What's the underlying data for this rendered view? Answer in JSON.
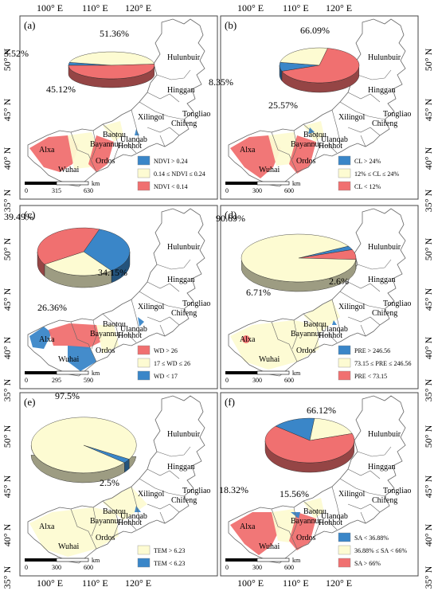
{
  "axes": {
    "top_lon": [
      "100° E",
      "110° E",
      "120° E"
    ],
    "bottom_lon": [
      "100° E",
      "110° E",
      "120° E"
    ],
    "left_lat": [
      "50° N",
      "45° N",
      "40° N",
      "35° N"
    ],
    "right_lat": [
      "50° N",
      "45° N",
      "40° N",
      "35° N"
    ]
  },
  "cities": [
    "Hulunbuir",
    "Hinggan",
    "Tongliao",
    "Chifeng",
    "Xilingol",
    "Ulanqab",
    "Baotou",
    "Hohhot",
    "Bayannur",
    "Alxa",
    "Ordos",
    "Wuhai"
  ],
  "colors": {
    "red": "#f07070",
    "yellow": "#fdfbd2",
    "blue": "#3a86c8",
    "border": "#666666"
  },
  "panels": [
    {
      "label": "(a)",
      "chart_data": {
        "type": "pie",
        "values": [
          3.52,
          45.12,
          51.36
        ],
        "labels": [
          "3.52%",
          "45.12%",
          "51.36%"
        ],
        "colors": [
          "#3a86c8",
          "#fdfbd2",
          "#f07070"
        ]
      },
      "legend": [
        "NDVI > 0.24",
        "0.14 ≤ NDVI ≤ 0.24",
        "NDVI < 0.14"
      ],
      "legend_colors": [
        "#3a86c8",
        "#fdfbd2",
        "#f07070"
      ],
      "scalebar": {
        "ticks": [
          "0",
          "315",
          "630"
        ],
        "unit": "km"
      }
    },
    {
      "label": "(b)",
      "chart_data": {
        "type": "pie",
        "values": [
          8.35,
          25.57,
          66.09
        ],
        "labels": [
          "8.35%",
          "25.57%",
          "66.09%"
        ],
        "colors": [
          "#3a86c8",
          "#fdfbd2",
          "#f07070"
        ]
      },
      "legend": [
        "CL > 24%",
        "12% ≤ CL ≤ 24%",
        "CL < 12%"
      ],
      "legend_colors": [
        "#3a86c8",
        "#fdfbd2",
        "#f07070"
      ],
      "scalebar": {
        "ticks": [
          "0",
          "300",
          "600"
        ],
        "unit": "km"
      }
    },
    {
      "label": "(c)",
      "chart_data": {
        "type": "pie",
        "values": [
          34.15,
          26.36,
          39.49
        ],
        "labels": [
          "34.15%",
          "26.36%",
          "39.49%"
        ],
        "colors": [
          "#3a86c8",
          "#fdfbd2",
          "#f07070"
        ]
      },
      "legend": [
        "WD > 26",
        "17 ≤ WD ≤ 26",
        "WD < 17"
      ],
      "legend_colors": [
        "#f07070",
        "#fdfbd2",
        "#3a86c8"
      ],
      "scalebar": {
        "ticks": [
          "0",
          "295",
          "590"
        ],
        "unit": "km"
      }
    },
    {
      "label": "(d)",
      "chart_data": {
        "type": "pie",
        "values": [
          2.6,
          6.71,
          90.69
        ],
        "labels": [
          "2.6%",
          "6.71%",
          "90.69%"
        ],
        "colors": [
          "#3a86c8",
          "#f07070",
          "#fdfbd2"
        ]
      },
      "legend": [
        "PRE > 246.56",
        "73.15 ≤ PRE ≤ 246.56",
        "PRE < 73.15"
      ],
      "legend_colors": [
        "#3a86c8",
        "#fdfbd2",
        "#f07070"
      ],
      "scalebar": {
        "ticks": [
          "0",
          "300",
          "600"
        ],
        "unit": "km"
      }
    },
    {
      "label": "(e)",
      "chart_data": {
        "type": "pie",
        "values": [
          2.5,
          97.5
        ],
        "labels": [
          "2.5%",
          "97.5%"
        ],
        "colors": [
          "#3a86c8",
          "#fdfbd2"
        ]
      },
      "legend": [
        "TEM > 6.23",
        "TEM < 6.23"
      ],
      "legend_colors": [
        "#fdfbd2",
        "#3a86c8"
      ],
      "scalebar": {
        "ticks": [
          "0",
          "300",
          "600"
        ],
        "unit": "km"
      }
    },
    {
      "label": "(f)",
      "chart_data": {
        "type": "pie",
        "values": [
          15.56,
          18.32,
          66.12
        ],
        "labels": [
          "15.56%",
          "18.32%",
          "66.12%"
        ],
        "colors": [
          "#3a86c8",
          "#fdfbd2",
          "#f07070"
        ]
      },
      "legend": [
        "SA < 36.88%",
        "36.88% ≤ SA < 66%",
        "SA > 66%"
      ],
      "legend_colors": [
        "#3a86c8",
        "#fdfbd2",
        "#f07070"
      ],
      "scalebar": {
        "ticks": [
          "0",
          "300",
          "600"
        ],
        "unit": "km"
      }
    }
  ]
}
